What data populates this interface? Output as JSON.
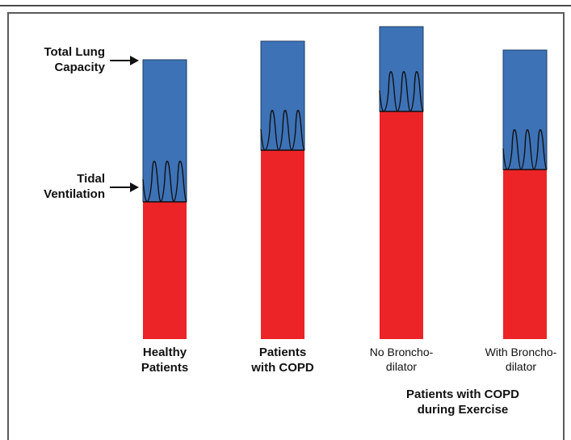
{
  "labels": {
    "total_lung_line1": "Total Lung",
    "total_lung_line2": "Capacity",
    "tidal_line1": "Tidal",
    "tidal_line2": "Ventilation"
  },
  "columns": [
    {
      "line1": "Healthy",
      "line2": "Patients",
      "bold": true
    },
    {
      "line1": "Patients",
      "line2": "with COPD",
      "bold": true
    },
    {
      "line1": "No Broncho-",
      "line2": "dilator",
      "bold": false
    },
    {
      "line1": "With Broncho-",
      "line2": "dilator",
      "bold": false
    }
  ],
  "group_label": {
    "line1": "Patients with COPD",
    "line2": "during Exercise"
  },
  "colors": {
    "capacity": "#3d72b6",
    "volume": "#ec2327"
  }
}
